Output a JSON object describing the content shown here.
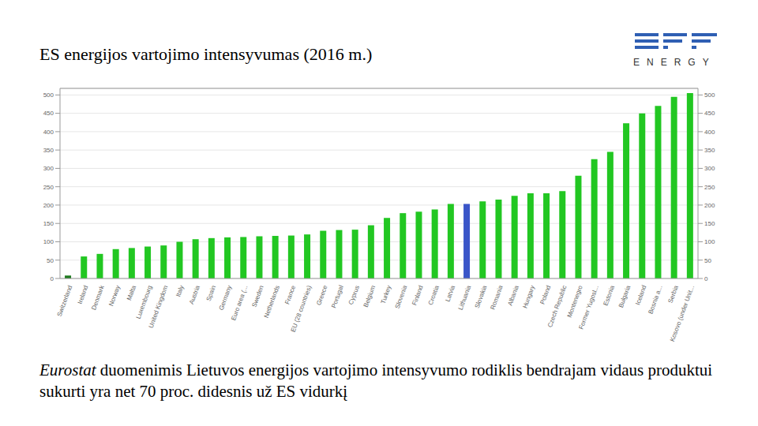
{
  "title": "ES energijos vartojimo intensyvumas (2016 m.)",
  "logo": "ENERGY",
  "note": {
    "source": "Eurostat",
    "text": "duomenimis Lietuvos energijos vartojimo intensyvumo rodiklis bendrajam vidaus produktui sukurti yra net 70 proc. didesnis už ES vidurkį"
  },
  "chart_data": {
    "type": "bar",
    "categories": [
      "Switzerland",
      "Ireland",
      "Denmark",
      "Norway",
      "Malta",
      "Luxembourg",
      "United Kingdom",
      "Italy",
      "Austria",
      "Spain",
      "Germany",
      "Euro area (...",
      "Sweden",
      "Netherlands",
      "France",
      "EU (28 countries)",
      "Greece",
      "Portugal",
      "Cyprus",
      "Belgium",
      "Turkey",
      "Slovenia",
      "Finland",
      "Croatia",
      "Latvia",
      "Lithuania",
      "Slovakia",
      "Romania",
      "Albania",
      "Hungary",
      "Poland",
      "Czech Republic",
      "Montenegro",
      "Former Yugosl...",
      "Estonia",
      "Bulgaria",
      "Iceland",
      "Bosnia a...",
      "Serbia",
      "Kosovo (under Unit..."
    ],
    "values": [
      8,
      60,
      67,
      80,
      83,
      87,
      90,
      100,
      107,
      110,
      112,
      113,
      115,
      116,
      117,
      120,
      130,
      132,
      133,
      145,
      165,
      178,
      182,
      188,
      203,
      203,
      210,
      215,
      225,
      232,
      232,
      238,
      280,
      325,
      345,
      423,
      450,
      470,
      495,
      505
    ],
    "colors": [
      "#1e7a1e",
      "#22c722",
      "#22c722",
      "#22c722",
      "#22c722",
      "#22c722",
      "#22c722",
      "#22c722",
      "#22c722",
      "#22c722",
      "#22c722",
      "#22c722",
      "#22c722",
      "#22c722",
      "#22c722",
      "#22c722",
      "#22c722",
      "#22c722",
      "#22c722",
      "#22c722",
      "#22c722",
      "#22c722",
      "#22c722",
      "#22c722",
      "#22c722",
      "#3a55c8",
      "#22c722",
      "#22c722",
      "#22c722",
      "#22c722",
      "#22c722",
      "#22c722",
      "#22c722",
      "#22c722",
      "#22c722",
      "#22c722",
      "#22c722",
      "#22c722",
      "#22c722",
      "#22c722"
    ],
    "ylim": [
      0,
      518
    ],
    "yticks": [
      0,
      50,
      100,
      150,
      200,
      250,
      300,
      350,
      400,
      450,
      500
    ],
    "grid": true
  }
}
